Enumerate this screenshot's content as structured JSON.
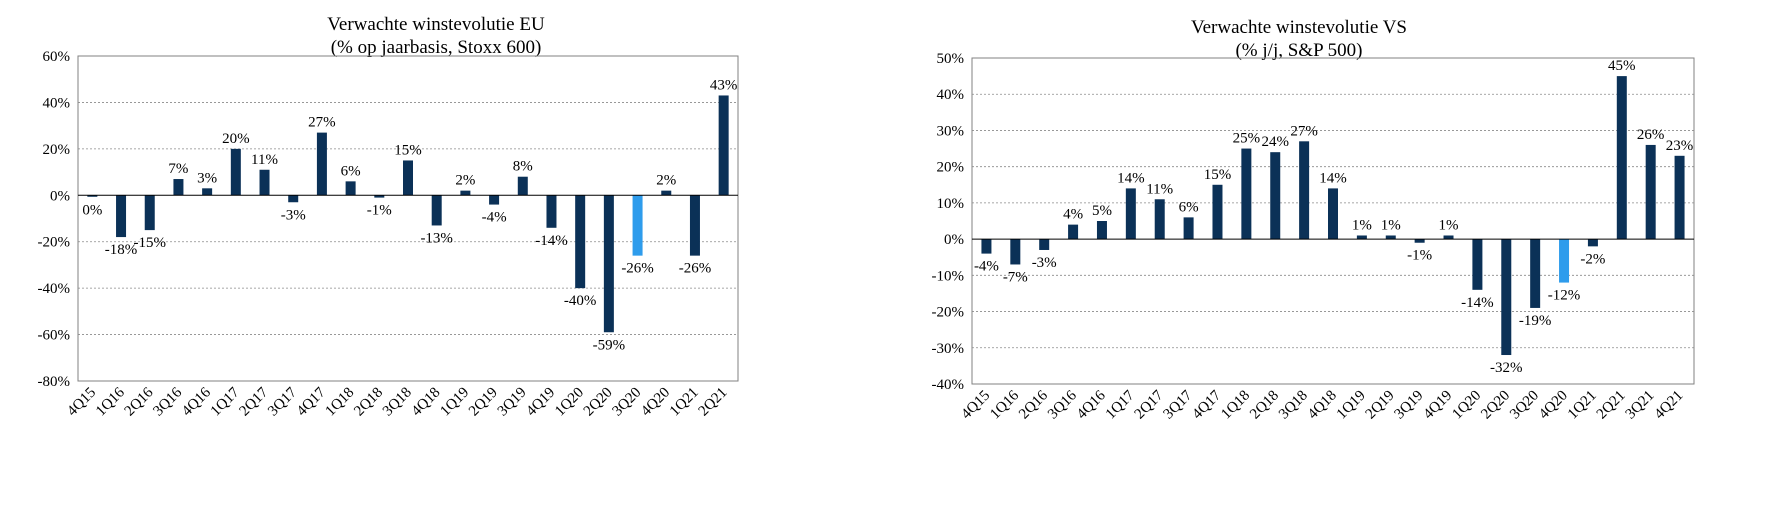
{
  "chart_data": [
    {
      "type": "bar",
      "title": "Verwachte winstevolutie EU",
      "subtitle": "(% op jaarbasis, Stoxx 600)",
      "xlabel": "",
      "ylabel": "",
      "ylim": [
        -80,
        60
      ],
      "ytick_step": 20,
      "ytick_labels": [
        "60%",
        "40%",
        "20%",
        "0%",
        "-20%",
        "-40%",
        "-60%",
        "-80%"
      ],
      "grid": true,
      "legend": "none",
      "bar_color": "#0b3157",
      "highlight_color": "#2e9cec",
      "highlight_index": 19,
      "categories": [
        "4Q15",
        "1Q16",
        "2Q16",
        "3Q16",
        "4Q16",
        "1Q17",
        "2Q17",
        "3Q17",
        "4Q17",
        "1Q18",
        "2Q18",
        "3Q18",
        "4Q18",
        "1Q19",
        "2Q19",
        "3Q19",
        "4Q19",
        "1Q20",
        "2Q20",
        "3Q20",
        "4Q20",
        "1Q21",
        "2Q21"
      ],
      "values": [
        -0.3,
        -18,
        -15,
        7,
        3,
        20,
        11,
        -3,
        27,
        6,
        -1,
        15,
        -13,
        2,
        -4,
        8,
        -14,
        -40,
        -59,
        -26,
        2,
        -26,
        43
      ],
      "data_labels": [
        "0%",
        "-18%",
        "-15%",
        "7%",
        "3%",
        "20%",
        "11%",
        "-3%",
        "27%",
        "6%",
        "-1%",
        "15%",
        "-13%",
        "2%",
        "-4%",
        "8%",
        "-14%",
        "-40%",
        "-59%",
        "-26%",
        "2%",
        "-26%",
        "43%"
      ]
    },
    {
      "type": "bar",
      "title": "Verwachte winstevolutie VS",
      "subtitle": "(% j/j, S&P 500)",
      "xlabel": "",
      "ylabel": "",
      "ylim": [
        -40,
        50
      ],
      "ytick_step": 10,
      "ytick_labels": [
        "50%",
        "40%",
        "30%",
        "20%",
        "10%",
        "0%",
        "-10%",
        "-20%",
        "-30%",
        "-40%"
      ],
      "grid": true,
      "legend": "none",
      "bar_color": "#0b3157",
      "highlight_color": "#2e9cec",
      "highlight_index": 20,
      "categories": [
        "4Q15",
        "1Q16",
        "2Q16",
        "3Q16",
        "4Q16",
        "1Q17",
        "2Q17",
        "3Q17",
        "4Q17",
        "1Q18",
        "2Q18",
        "3Q18",
        "4Q18",
        "1Q19",
        "2Q19",
        "3Q19",
        "4Q19",
        "1Q20",
        "2Q20",
        "3Q20",
        "4Q20",
        "1Q21",
        "2Q21",
        "3Q21",
        "4Q21"
      ],
      "values": [
        -4,
        -7,
        -3,
        4,
        5,
        14,
        11,
        6,
        15,
        25,
        24,
        27,
        14,
        1,
        1,
        -1,
        1,
        -14,
        -32,
        -19,
        -12,
        -2,
        45,
        26,
        23
      ],
      "data_labels": [
        "-4%",
        "-7%",
        "-3%",
        "4%",
        "5%",
        "14%",
        "11%",
        "6%",
        "15%",
        "25%",
        "24%",
        "27%",
        "14%",
        "1%",
        "1%",
        "-1%",
        "1%",
        "-14%",
        "-32%",
        "-19%",
        "-12%",
        "-2%",
        "45%",
        "26%",
        "23%"
      ]
    }
  ]
}
